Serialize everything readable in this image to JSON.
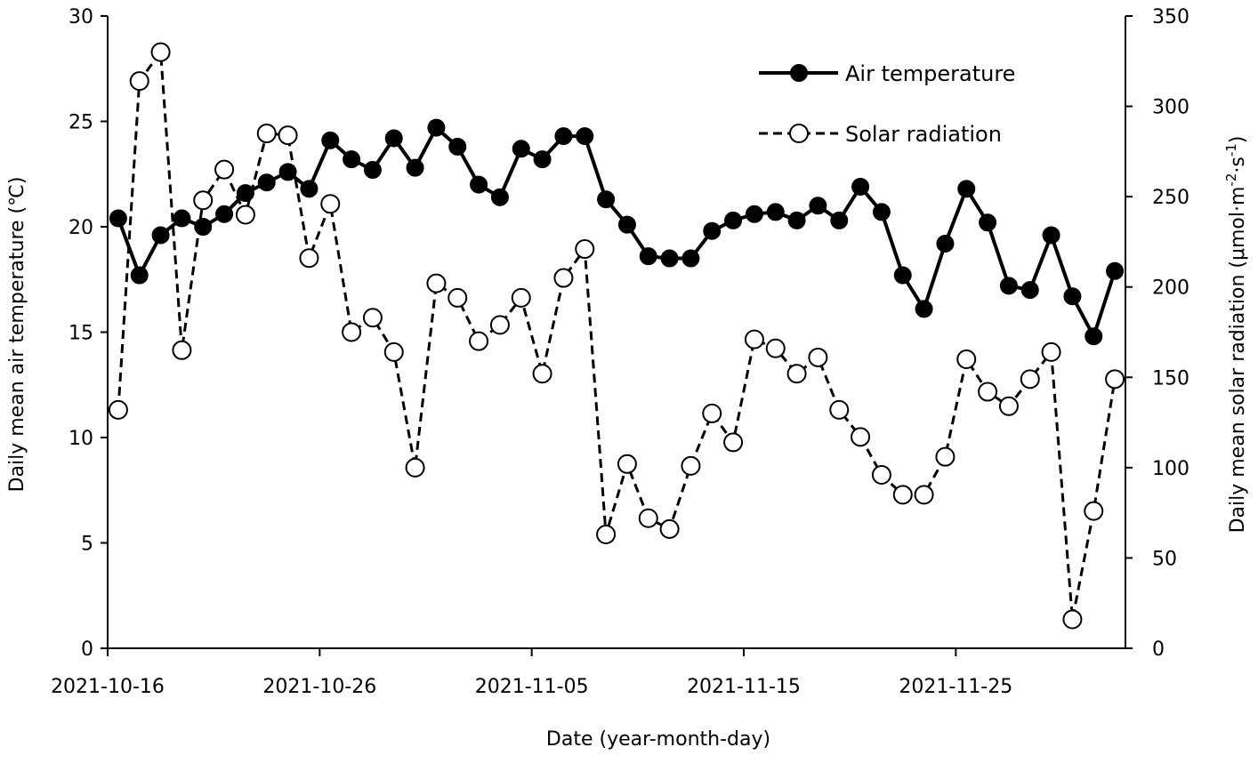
{
  "chart_data": {
    "type": "line",
    "title": "",
    "xlabel": "Date (year-month-day)",
    "ylabel_left": "Daily mean air temperature (℃)",
    "ylabel_right_base": "Daily mean solar radiation (μmol·m",
    "ylabel_right_sup1": "-2",
    "ylabel_right_mid": "·s",
    "ylabel_right_sup2": "-1",
    "ylabel_right_end": ")",
    "x_tick_labels": [
      "2021-10-16",
      "2021-10-26",
      "2021-11-05",
      "2021-11-15",
      "2021-11-25"
    ],
    "y_left_ticks": [
      "0",
      "5",
      "10",
      "15",
      "20",
      "25",
      "30"
    ],
    "y_right_ticks": [
      "0",
      "50",
      "100",
      "150",
      "200",
      "250",
      "300",
      "350"
    ],
    "x": [
      "2021-10-16",
      "2021-10-17",
      "2021-10-18",
      "2021-10-19",
      "2021-10-20",
      "2021-10-21",
      "2021-10-22",
      "2021-10-23",
      "2021-10-24",
      "2021-10-25",
      "2021-10-26",
      "2021-10-27",
      "2021-10-28",
      "2021-10-29",
      "2021-10-30",
      "2021-10-31",
      "2021-11-01",
      "2021-11-02",
      "2021-11-03",
      "2021-11-04",
      "2021-11-05",
      "2021-11-06",
      "2021-11-07",
      "2021-11-08",
      "2021-11-09",
      "2021-11-10",
      "2021-11-11",
      "2021-11-12",
      "2021-11-13",
      "2021-11-14",
      "2021-11-15",
      "2021-11-16",
      "2021-11-17",
      "2021-11-18",
      "2021-11-19",
      "2021-11-20",
      "2021-11-21",
      "2021-11-22",
      "2021-11-23",
      "2021-11-24",
      "2021-11-25",
      "2021-11-26",
      "2021-11-27",
      "2021-11-28",
      "2021-11-29",
      "2021-11-30",
      "2021-12-01",
      "2021-12-02"
    ],
    "ylim_left": [
      0,
      30
    ],
    "ylim_right": [
      0,
      350
    ],
    "grid": false,
    "legend_position": "top-right",
    "series": [
      {
        "name": "Air temperature",
        "axis": "left",
        "style": "solid-filled-circle",
        "color": "#000000",
        "values": [
          20.4,
          17.7,
          19.6,
          20.4,
          20.0,
          20.6,
          21.6,
          22.1,
          22.6,
          21.8,
          24.1,
          23.2,
          22.7,
          24.2,
          22.8,
          24.7,
          23.8,
          22.0,
          21.4,
          23.7,
          23.2,
          24.3,
          24.3,
          21.3,
          20.1,
          18.6,
          18.5,
          18.5,
          19.8,
          20.3,
          20.6,
          20.7,
          20.3,
          21.0,
          20.3,
          21.9,
          20.7,
          17.7,
          16.1,
          19.2,
          21.8,
          20.2,
          17.2,
          17.0,
          19.6,
          16.7,
          14.8,
          17.9
        ]
      },
      {
        "name": "Solar radiation",
        "axis": "right",
        "style": "dashed-open-circle",
        "color": "#000000",
        "values": [
          132,
          314,
          330,
          165,
          248,
          265,
          240,
          285,
          284,
          216,
          246,
          175,
          183,
          164,
          100,
          202,
          194,
          170,
          179,
          194,
          152,
          205,
          221,
          63,
          102,
          72,
          66,
          101,
          130,
          114,
          171,
          166,
          152,
          161,
          132,
          117,
          96,
          85,
          85,
          106,
          160,
          142,
          134,
          149,
          164,
          16,
          76,
          149
        ]
      }
    ]
  }
}
